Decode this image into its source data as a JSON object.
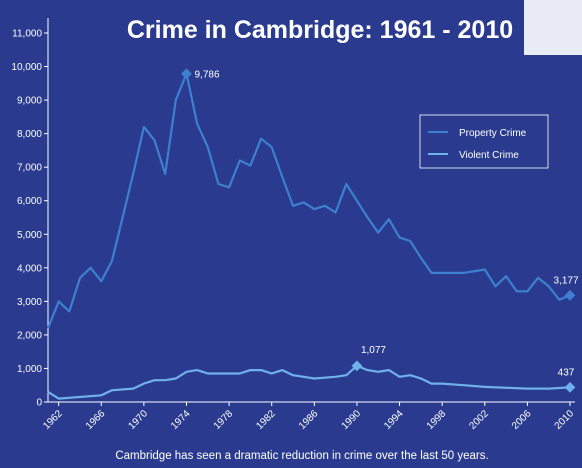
{
  "colors": {
    "background": "#2a3b8f",
    "axis": "#ffffff",
    "property_line": "#3d7fd0",
    "violent_line": "#6fb1ea",
    "legend_border": "#ffffff",
    "corner_tint": "#e9ecf6"
  },
  "chart_data": {
    "type": "line",
    "title": "Crime in Cambridge: 1961 - 2010",
    "caption": "Cambridge has seen a dramatic reduction in crime over the last 50 years.",
    "xlabel": "",
    "ylabel": "",
    "xlim": [
      1961,
      2010
    ],
    "ylim": [
      0,
      11000
    ],
    "grid": false,
    "legend_position": "right",
    "y_ticks": [
      {
        "value": 0,
        "label": "0"
      },
      {
        "value": 1000,
        "label": "1,000"
      },
      {
        "value": 2000,
        "label": "2,000"
      },
      {
        "value": 3000,
        "label": "3,000"
      },
      {
        "value": 4000,
        "label": "4,000"
      },
      {
        "value": 5000,
        "label": "5,000"
      },
      {
        "value": 6000,
        "label": "6,000"
      },
      {
        "value": 7000,
        "label": "7,000"
      },
      {
        "value": 8000,
        "label": "8,000"
      },
      {
        "value": 9000,
        "label": "9,000"
      },
      {
        "value": 10000,
        "label": "10,000"
      },
      {
        "value": 11000,
        "label": "11,000"
      }
    ],
    "x_ticks": [
      {
        "value": 1962,
        "label": "1962"
      },
      {
        "value": 1966,
        "label": "1966"
      },
      {
        "value": 1970,
        "label": "1970"
      },
      {
        "value": 1974,
        "label": "1974"
      },
      {
        "value": 1978,
        "label": "1978"
      },
      {
        "value": 1982,
        "label": "1982"
      },
      {
        "value": 1986,
        "label": "1986"
      },
      {
        "value": 1990,
        "label": "1990"
      },
      {
        "value": 1994,
        "label": "1994"
      },
      {
        "value": 1998,
        "label": "1998"
      },
      {
        "value": 2002,
        "label": "2002"
      },
      {
        "value": 2006,
        "label": "2006"
      },
      {
        "value": 2010,
        "label": "2010"
      }
    ],
    "series": [
      {
        "name": "Property Crime",
        "x": [
          1961,
          1962,
          1963,
          1964,
          1965,
          1966,
          1967,
          1968,
          1969,
          1970,
          1971,
          1972,
          1973,
          1974,
          1975,
          1976,
          1977,
          1978,
          1979,
          1980,
          1981,
          1982,
          1983,
          1984,
          1985,
          1986,
          1987,
          1988,
          1989,
          1990,
          1991,
          1992,
          1993,
          1994,
          1995,
          1996,
          1997,
          1998,
          2000,
          2002,
          2003,
          2004,
          2005,
          2006,
          2007,
          2008,
          2009,
          2010
        ],
        "y": [
          2200,
          3000,
          2700,
          3700,
          4000,
          3600,
          4200,
          5500,
          6800,
          8200,
          7800,
          6800,
          9000,
          9786,
          8300,
          7600,
          6500,
          6400,
          7200,
          7050,
          7850,
          7600,
          6700,
          5850,
          5950,
          5750,
          5850,
          5650,
          6500,
          6000,
          5500,
          5050,
          5450,
          4900,
          4800,
          4300,
          3850,
          3850,
          3850,
          3950,
          3450,
          3750,
          3300,
          3300,
          3700,
          3450,
          3050,
          3177
        ]
      },
      {
        "name": "Violent Crime",
        "x": [
          1961,
          1962,
          1966,
          1967,
          1969,
          1970,
          1971,
          1972,
          1973,
          1974,
          1975,
          1976,
          1977,
          1978,
          1979,
          1980,
          1981,
          1982,
          1983,
          1984,
          1985,
          1986,
          1988,
          1989,
          1990,
          1991,
          1992,
          1993,
          1994,
          1995,
          1996,
          1997,
          1998,
          2000,
          2002,
          2006,
          2008,
          2010
        ],
        "y": [
          300,
          100,
          200,
          350,
          400,
          550,
          650,
          650,
          700,
          900,
          950,
          850,
          850,
          850,
          850,
          950,
          950,
          850,
          950,
          800,
          750,
          700,
          750,
          800,
          1077,
          950,
          900,
          950,
          750,
          800,
          700,
          550,
          550,
          500,
          450,
          400,
          400,
          437
        ]
      }
    ],
    "annotations": [
      {
        "series": 0,
        "x": 1974,
        "y": 9786,
        "label": "9,786"
      },
      {
        "series": 0,
        "x": 2010,
        "y": 3177,
        "label": "3,177"
      },
      {
        "series": 1,
        "x": 1990,
        "y": 1077,
        "label": "1,077"
      },
      {
        "series": 1,
        "x": 2010,
        "y": 437,
        "label": "437"
      }
    ]
  }
}
